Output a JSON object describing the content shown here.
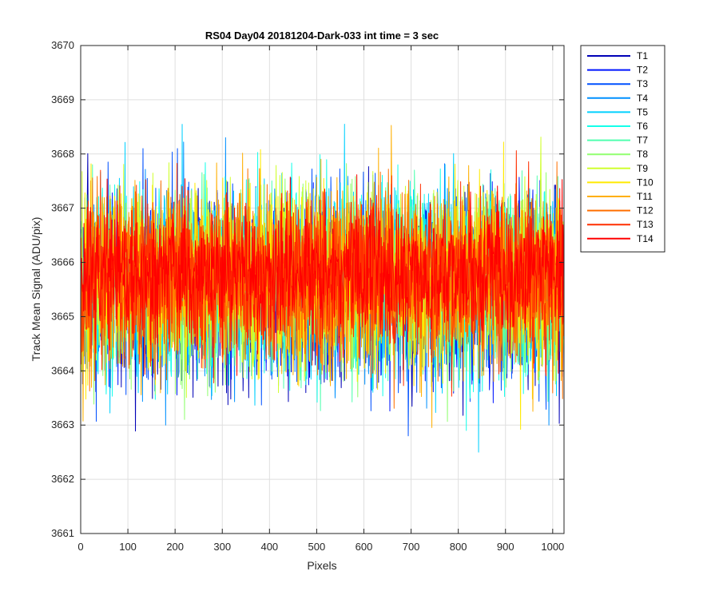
{
  "chart_data": {
    "type": "line",
    "title": "RS04 Day04 20181204-Dark-033 int time = 3 sec",
    "xlabel": "Pixels",
    "ylabel": "Track Mean Signal (ADU/pix)",
    "xlim": [
      0,
      1024
    ],
    "ylim": [
      3661,
      3670
    ],
    "xticks": [
      0,
      100,
      200,
      300,
      400,
      500,
      600,
      700,
      800,
      900,
      1000
    ],
    "yticks": [
      3661,
      3662,
      3663,
      3664,
      3665,
      3666,
      3667,
      3668,
      3669,
      3670
    ],
    "grid": true,
    "legend_position": "outside-right",
    "x_range": [
      1,
      1024
    ],
    "series": [
      {
        "name": "T1",
        "color": "#0000B7",
        "mean": 3665.4,
        "amplitude": 0.85,
        "min": 3661.6,
        "max": 3668.2
      },
      {
        "name": "T2",
        "color": "#0015FF",
        "mean": 3665.5,
        "amplitude": 0.8,
        "min": 3662.3,
        "max": 3668.1
      },
      {
        "name": "T3",
        "color": "#0050FF",
        "mean": 3665.5,
        "amplitude": 0.8,
        "min": 3662.8,
        "max": 3668.1
      },
      {
        "name": "T4",
        "color": "#0090FF",
        "mean": 3665.6,
        "amplitude": 0.8,
        "min": 3663.0,
        "max": 3668.3
      },
      {
        "name": "T5",
        "color": "#00D0FF",
        "mean": 3665.6,
        "amplitude": 0.8,
        "min": 3662.5,
        "max": 3669.0
      },
      {
        "name": "T6",
        "color": "#15FFEA",
        "mean": 3665.6,
        "amplitude": 0.8,
        "min": 3662.9,
        "max": 3668.9
      },
      {
        "name": "T7",
        "color": "#50FFAF",
        "mean": 3665.6,
        "amplitude": 0.8,
        "min": 3662.8,
        "max": 3669.3
      },
      {
        "name": "T8",
        "color": "#90FF6F",
        "mean": 3665.6,
        "amplitude": 0.8,
        "min": 3662.3,
        "max": 3669.0
      },
      {
        "name": "T9",
        "color": "#D0FF2F",
        "mean": 3665.7,
        "amplitude": 0.8,
        "min": 3662.9,
        "max": 3669.3
      },
      {
        "name": "T10",
        "color": "#FFEA00",
        "mean": 3665.7,
        "amplitude": 0.8,
        "min": 3662.8,
        "max": 3668.9
      },
      {
        "name": "T11",
        "color": "#FFAF00",
        "mean": 3665.7,
        "amplitude": 0.8,
        "min": 3662.5,
        "max": 3668.7
      },
      {
        "name": "T12",
        "color": "#FF6F00",
        "mean": 3665.7,
        "amplitude": 0.8,
        "min": 3662.1,
        "max": 3669.2
      },
      {
        "name": "T13",
        "color": "#FF2F00",
        "mean": 3665.7,
        "amplitude": 0.75,
        "min": 3662.4,
        "max": 3669.0
      },
      {
        "name": "T14",
        "color": "#FF0000",
        "mean": 3665.8,
        "amplitude": 0.6,
        "min": 3663.4,
        "max": 3668.8
      }
    ]
  }
}
